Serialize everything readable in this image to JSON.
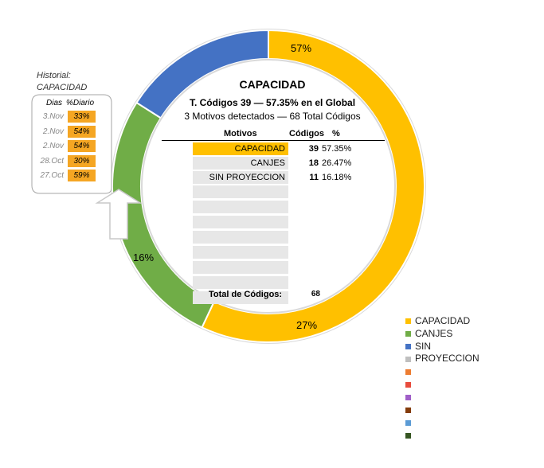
{
  "chart_data": {
    "type": "pie",
    "title": "CAPACIDAD",
    "slices": [
      {
        "name": "CAPACIDAD",
        "value": 57,
        "color": "#ffc000",
        "label": "57%"
      },
      {
        "name": "CANJES",
        "value": 27,
        "color": "#70ad47",
        "label": "27%"
      },
      {
        "name": "SIN PROYECCION",
        "value": 16,
        "color": "#4472c4",
        "label": "16%"
      }
    ]
  },
  "center": {
    "title": "CAPACIDAD",
    "subtitle1": "T. Códigos 39 — 57.35% en el Global",
    "subtitle2": "3 Motivos detectados — 68 Total Códigos",
    "headers": {
      "motivos": "Motivos",
      "codigos": "Códigos",
      "pct": "%"
    },
    "rows": [
      {
        "motivo": "CAPACIDAD",
        "codigos": "39",
        "pct": "57.35%",
        "highlight": true
      },
      {
        "motivo": "CANJES",
        "codigos": "18",
        "pct": "26.47%",
        "highlight": false
      },
      {
        "motivo": "SIN PROYECCION",
        "codigos": "11",
        "pct": "16.18%",
        "highlight": false
      }
    ],
    "empty_rows": 8,
    "total_label": "Total de Códigos:",
    "total_value": "68"
  },
  "history": {
    "title_line1": "Historial:",
    "title_line2": "CAPACIDAD",
    "header_dias": "Dias",
    "header_diario": "%Diario",
    "rows": [
      {
        "dia": "3.Nov",
        "valor": "33%"
      },
      {
        "dia": "2.Nov",
        "valor": "54%"
      },
      {
        "dia": "2.Nov",
        "valor": "54%"
      },
      {
        "dia": "28.Oct",
        "valor": "30%"
      },
      {
        "dia": "27.Oct",
        "valor": "59%"
      }
    ]
  },
  "legend": {
    "items": [
      {
        "label": "CAPACIDAD",
        "color": "#ffc000"
      },
      {
        "label": "CANJES",
        "color": "#70ad47"
      },
      {
        "label": "SIN PROYECCION",
        "color": "#4472c4"
      },
      {
        "label": "",
        "color": "#bfbfbf"
      },
      {
        "label": "",
        "color": "#ed7d31"
      },
      {
        "label": "",
        "color": "#e84c3d"
      },
      {
        "label": "",
        "color": "#a05fc8"
      },
      {
        "label": "",
        "color": "#843c0c"
      },
      {
        "label": "",
        "color": "#5b9bd5"
      },
      {
        "label": "",
        "color": "#375623"
      }
    ]
  }
}
